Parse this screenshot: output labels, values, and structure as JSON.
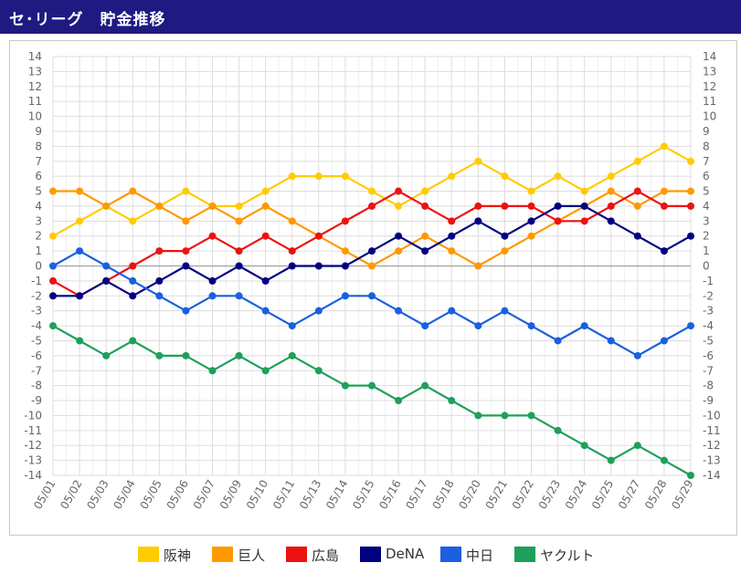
{
  "header": {
    "title": "セ･リーグ　貯金推移"
  },
  "chart_data": {
    "type": "line",
    "title": "",
    "xlabel": "",
    "ylabel": "",
    "ylim": [
      -14,
      14
    ],
    "yticks": [
      14,
      13,
      12,
      11,
      10,
      9,
      8,
      7,
      6,
      5,
      4,
      3,
      2,
      1,
      0,
      -1,
      -2,
      -3,
      -4,
      -5,
      -6,
      -7,
      -8,
      -9,
      -10,
      -11,
      -12,
      -13,
      -14
    ],
    "grid": true,
    "legend_position": "bottom",
    "categories": [
      "05/01",
      "05/02",
      "05/03",
      "05/04",
      "05/05",
      "05/06",
      "05/07",
      "05/09",
      "05/10",
      "05/11",
      "05/13",
      "05/14",
      "05/15",
      "05/16",
      "05/17",
      "05/18",
      "05/20",
      "05/21",
      "05/22",
      "05/23",
      "05/24",
      "05/25",
      "05/27",
      "05/28",
      "05/29"
    ],
    "series": [
      {
        "name": "阪神",
        "color": "#ffcc00",
        "values": [
          2,
          3,
          4,
          3,
          4,
          5,
          4,
          4,
          5,
          6,
          6,
          6,
          5,
          4,
          5,
          6,
          7,
          6,
          5,
          6,
          5,
          6,
          7,
          8,
          7
        ]
      },
      {
        "name": "巨人",
        "color": "#ff9900",
        "values": [
          5,
          5,
          4,
          5,
          4,
          3,
          4,
          3,
          4,
          3,
          2,
          1,
          0,
          1,
          2,
          1,
          0,
          1,
          2,
          3,
          4,
          5,
          4,
          5,
          5
        ]
      },
      {
        "name": "広島",
        "color": "#ee1111",
        "values": [
          -1,
          -2,
          -1,
          0,
          1,
          1,
          2,
          1,
          2,
          1,
          2,
          3,
          4,
          5,
          4,
          3,
          4,
          4,
          4,
          3,
          3,
          4,
          5,
          4,
          4
        ]
      },
      {
        "name": "DeNA",
        "color": "#000080",
        "values": [
          -2,
          -2,
          -1,
          -2,
          -1,
          0,
          -1,
          0,
          -1,
          0,
          0,
          0,
          1,
          2,
          1,
          2,
          3,
          2,
          3,
          4,
          4,
          3,
          2,
          1,
          2
        ]
      },
      {
        "name": "中日",
        "color": "#1a5fe0",
        "values": [
          0,
          1,
          0,
          -1,
          -2,
          -3,
          -2,
          -2,
          -3,
          -4,
          -3,
          -2,
          -2,
          -3,
          -4,
          -3,
          -4,
          -3,
          -4,
          -5,
          -4,
          -5,
          -6,
          -5,
          -4
        ]
      },
      {
        "name": "ヤクルト",
        "color": "#1ea05a",
        "values": [
          -4,
          -5,
          -6,
          -5,
          -6,
          -6,
          -7,
          -6,
          -7,
          -6,
          -7,
          -8,
          -8,
          -9,
          -8,
          -9,
          -10,
          -10,
          -10,
          -11,
          -12,
          -13,
          -12,
          -13,
          -14
        ]
      }
    ]
  }
}
